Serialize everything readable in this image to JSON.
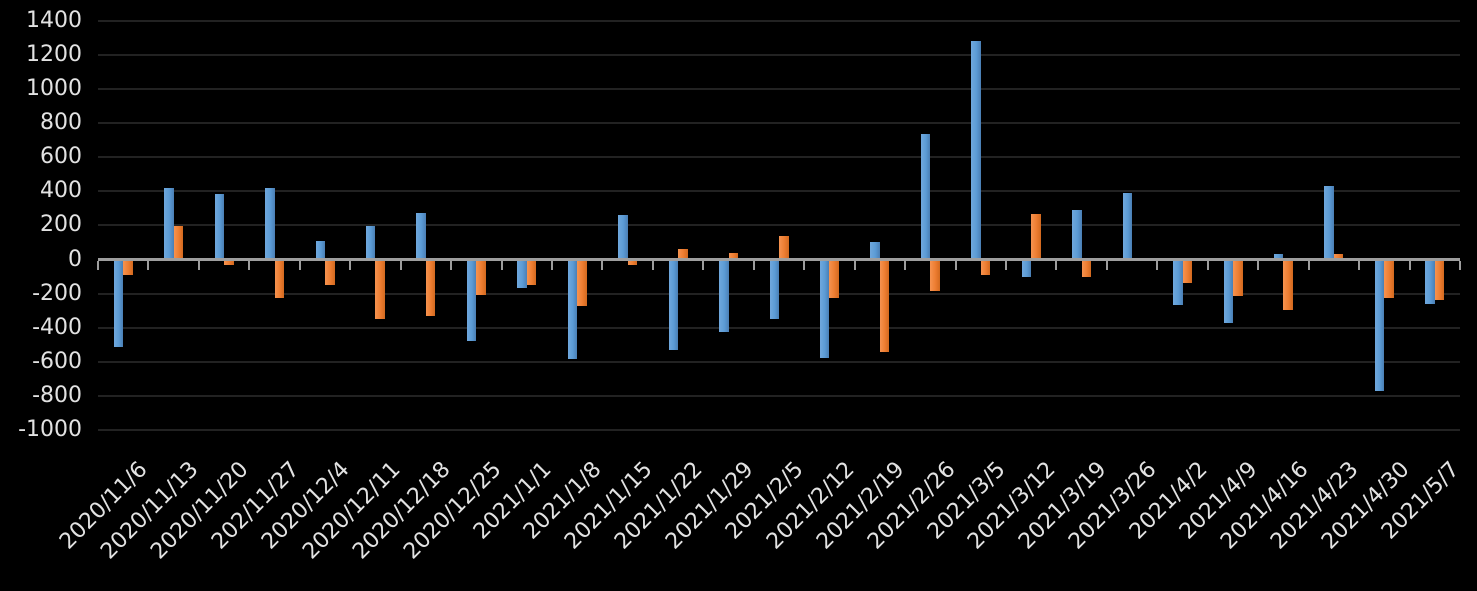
{
  "chart_data": {
    "type": "bar",
    "title": "",
    "xlabel": "",
    "ylabel": "",
    "legend": "none",
    "grid": true,
    "ylim": [
      -1000,
      1400
    ],
    "ytick_step": 200,
    "y_ticks": [
      1400,
      1200,
      1000,
      800,
      600,
      400,
      200,
      0,
      -200,
      -400,
      -600,
      -800,
      -1000
    ],
    "categories": [
      "2020/11/6",
      "2020/11/13",
      "2020/11/20",
      "202/11/27",
      "2020/12/4",
      "2020/12/11",
      "2020/12/18",
      "2020/12/25",
      "2021/1/1",
      "2021/1/8",
      "2021/1/15",
      "2021/1/22",
      "2021/1/29",
      "2021/2/5",
      "2021/2/12",
      "2021/2/19",
      "2021/2/26",
      "2021/3/5",
      "2021/3/12",
      "2021/3/19",
      "2021/3/26",
      "2021/4/2",
      "2021/4/9",
      "2021/4/16",
      "2021/4/23",
      "2021/4/30",
      "2021/5/7"
    ],
    "series": [
      {
        "name": "series-1",
        "color": "#5B9BD5",
        "values": [
          -515,
          420,
          385,
          420,
          110,
          195,
          270,
          -480,
          -165,
          -585,
          260,
          -530,
          -425,
          -350,
          -580,
          100,
          735,
          1280,
          -105,
          290,
          390,
          -265,
          -370,
          35,
          430,
          -770,
          -260
        ]
      },
      {
        "name": "series-2",
        "color": "#ED7D31",
        "values": [
          -90,
          195,
          -30,
          -225,
          -150,
          -350,
          -330,
          -210,
          -150,
          -275,
          -30,
          60,
          40,
          140,
          -225,
          -545,
          -185,
          -90,
          265,
          -100,
          10,
          -135,
          -215,
          -295,
          30,
          -225,
          -240
        ]
      }
    ],
    "colors": {
      "background": "#000000",
      "gridline": "#222222",
      "axis": "#9E9E9E",
      "text": "#E2E2E2"
    }
  }
}
